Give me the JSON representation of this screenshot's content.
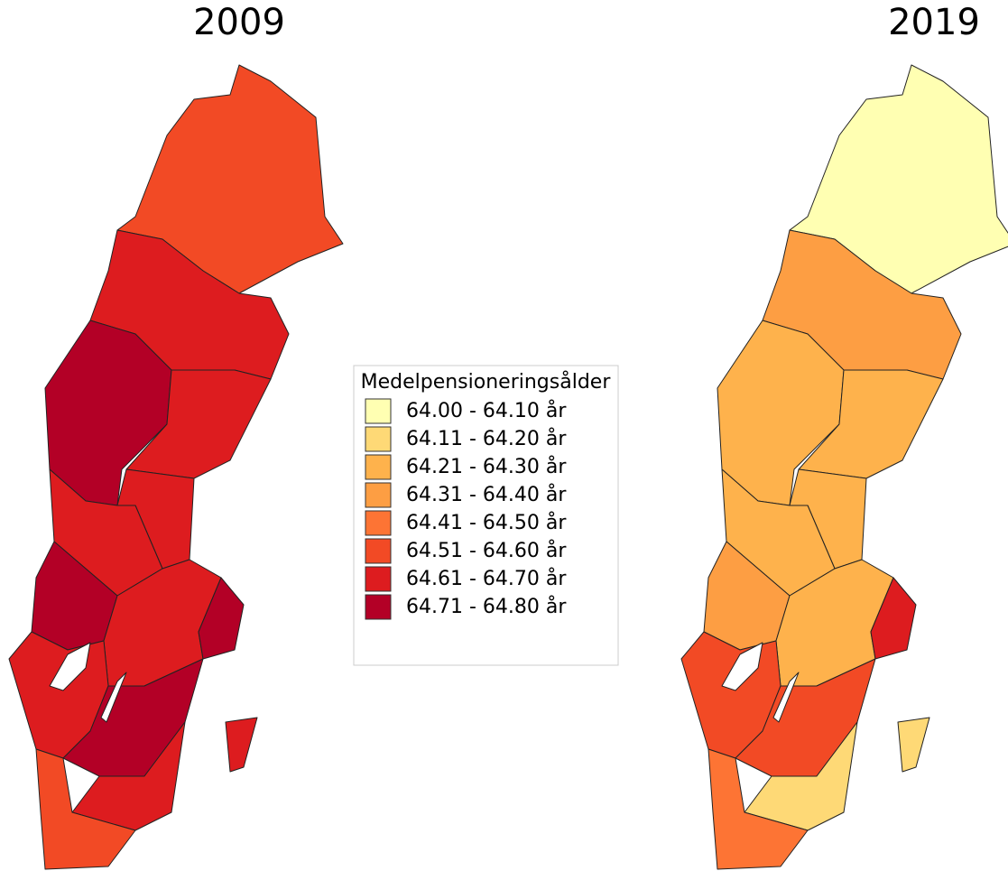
{
  "maps": [
    {
      "title": "2009"
    },
    {
      "title": "2019"
    }
  ],
  "legend": {
    "title": "Medelpensioneringsålder",
    "items": [
      {
        "label": "64.00 - 64.10 år",
        "color": "#ffffb2"
      },
      {
        "label": "64.11 - 64.20 år",
        "color": "#fed976"
      },
      {
        "label": "64.21 - 64.30 år",
        "color": "#feb24c"
      },
      {
        "label": "64.31 - 64.40 år",
        "color": "#fd9e43"
      },
      {
        "label": "64.41 - 64.50 år",
        "color": "#fd7434"
      },
      {
        "label": "64.51 - 64.60 år",
        "color": "#f24a25"
      },
      {
        "label": "64.61 - 64.70 år",
        "color": "#dd1c1f"
      },
      {
        "label": "64.71 - 64.80 år",
        "color": "#b30026"
      }
    ]
  }
}
